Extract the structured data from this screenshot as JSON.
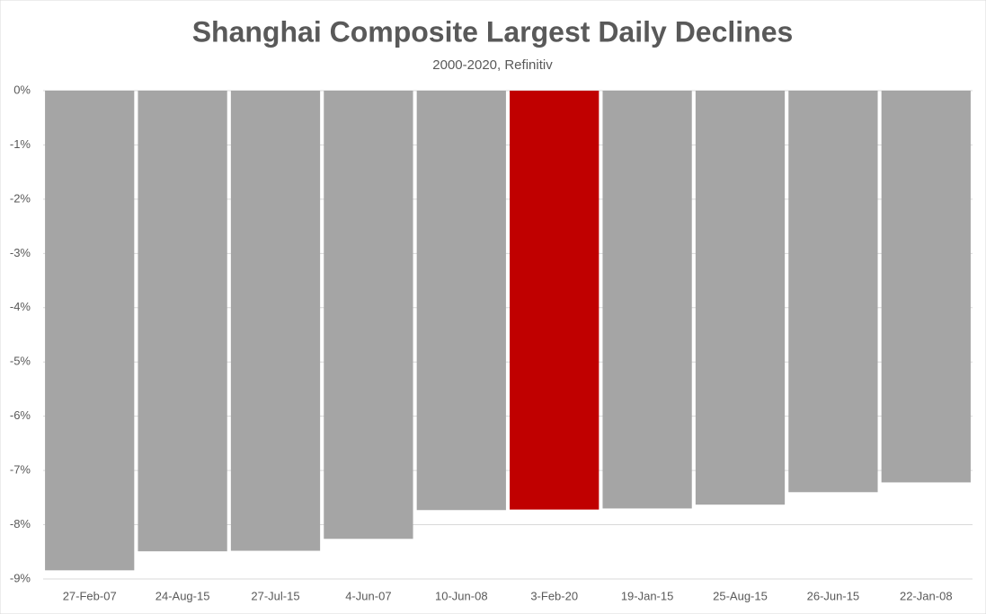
{
  "chart_data": {
    "type": "bar",
    "title": "Shanghai Composite Largest Daily Declines",
    "subtitle": "2000-2020, Refinitiv",
    "categories": [
      "27-Feb-07",
      "24-Aug-15",
      "27-Jul-15",
      "4-Jun-07",
      "10-Jun-08",
      "3-Feb-20",
      "19-Jan-15",
      "25-Aug-15",
      "26-Jun-15",
      "22-Jan-08"
    ],
    "values": [
      -8.84,
      -8.49,
      -8.48,
      -8.26,
      -7.73,
      -7.72,
      -7.7,
      -7.63,
      -7.4,
      -7.22
    ],
    "colors": [
      "#a5a5a5",
      "#a5a5a5",
      "#a5a5a5",
      "#a5a5a5",
      "#a5a5a5",
      "#c00000",
      "#a5a5a5",
      "#a5a5a5",
      "#a5a5a5",
      "#a5a5a5"
    ],
    "ylim": [
      -9,
      0
    ],
    "yticks": [
      {
        "value": 0,
        "label": "0%"
      },
      {
        "value": -1,
        "label": "-1%"
      },
      {
        "value": -2,
        "label": "-2%"
      },
      {
        "value": -3,
        "label": "-3%"
      },
      {
        "value": -4,
        "label": "-4%"
      },
      {
        "value": -5,
        "label": "-5%"
      },
      {
        "value": -6,
        "label": "-6%"
      },
      {
        "value": -7,
        "label": "-7%"
      },
      {
        "value": -8,
        "label": "-8%"
      },
      {
        "value": -9,
        "label": "-9%"
      }
    ],
    "grid": true
  }
}
